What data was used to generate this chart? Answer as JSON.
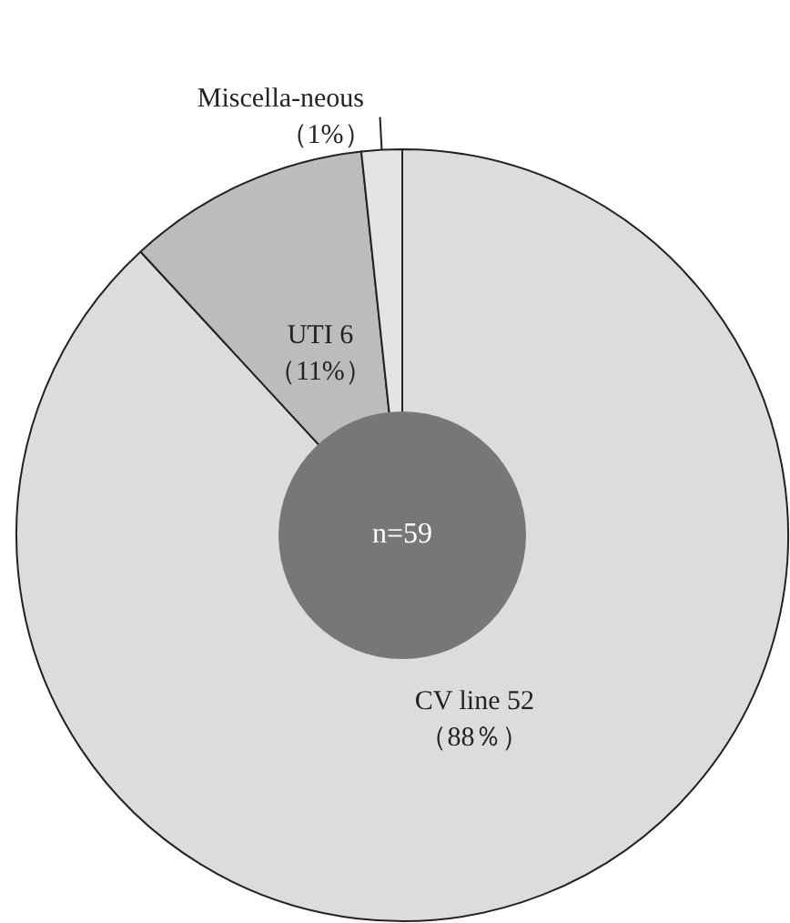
{
  "chart_data": {
    "type": "pie",
    "categories": [
      "CV line",
      "UTI",
      "Miscella-neous"
    ],
    "values": [
      52,
      6,
      1
    ],
    "value_labels": [
      "52\n（88％）",
      "6\n（11%）",
      "\n（1%）"
    ],
    "colors": [
      "#dcdcdc",
      "#bcbcbc",
      "#e4e4e4"
    ],
    "annotations": [
      "n=59"
    ],
    "legend": false
  }
}
